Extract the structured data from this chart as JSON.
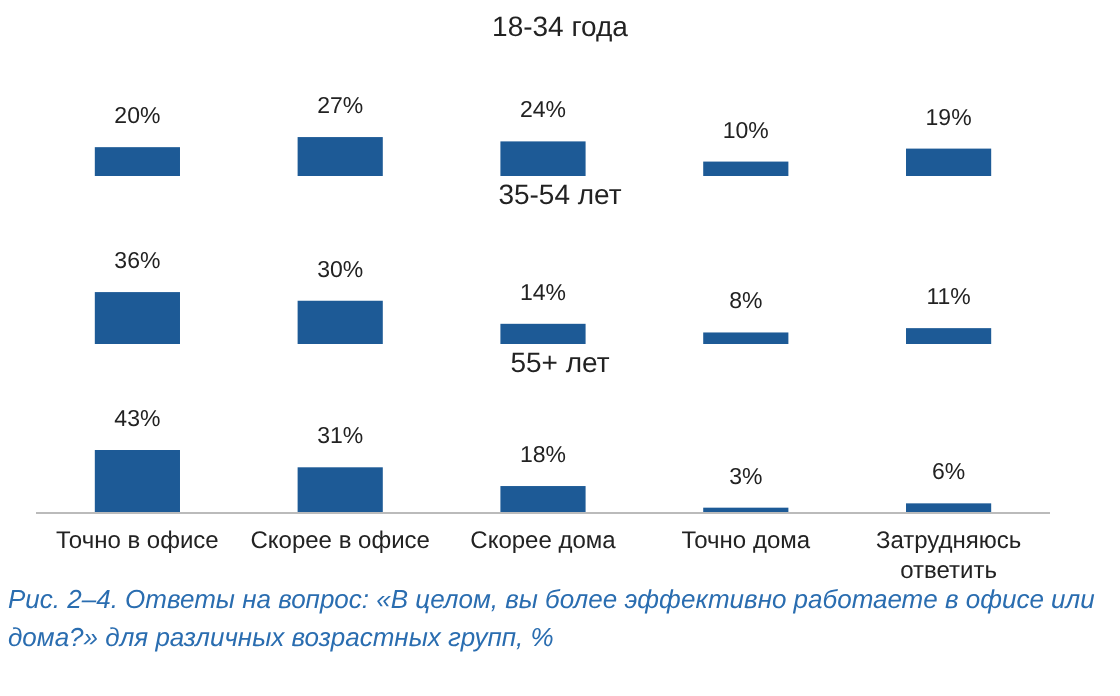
{
  "chart_data": [
    {
      "type": "bar",
      "title": "18-34 года",
      "categories": [
        null,
        null,
        null,
        null,
        null
      ],
      "values": [
        20,
        27,
        24,
        10,
        19
      ],
      "value_labels": [
        "20%",
        "27%",
        "24%",
        "10%",
        "19%"
      ],
      "color": "#1d5a96",
      "tick_labels": false
    },
    {
      "type": "bar",
      "title": "35-54 лет",
      "categories": [
        null,
        null,
        null,
        null,
        null
      ],
      "values": [
        36,
        30,
        14,
        8,
        11
      ],
      "value_labels": [
        "36%",
        "30%",
        "14%",
        "8%",
        "11%"
      ],
      "color": "#1d5a96",
      "tick_labels": false
    },
    {
      "type": "bar",
      "title": "55+ лет",
      "categories": [
        "Точно в офисе",
        "Скорее в офисе",
        "Скорее дома",
        "Точно дома",
        "Затрудняюсь ответить"
      ],
      "values": [
        43,
        31,
        18,
        3,
        6
      ],
      "value_labels": [
        "43%",
        "31%",
        "18%",
        "3%",
        "6%"
      ],
      "color": "#1d5a96",
      "tick_labels": "x",
      "annotations": [
        "Рис. 2–4. Ответы на вопрос: «В целом, вы более эффективно работаете в офисе или дома?» для различных возрастных групп, %"
      ]
    }
  ]
}
